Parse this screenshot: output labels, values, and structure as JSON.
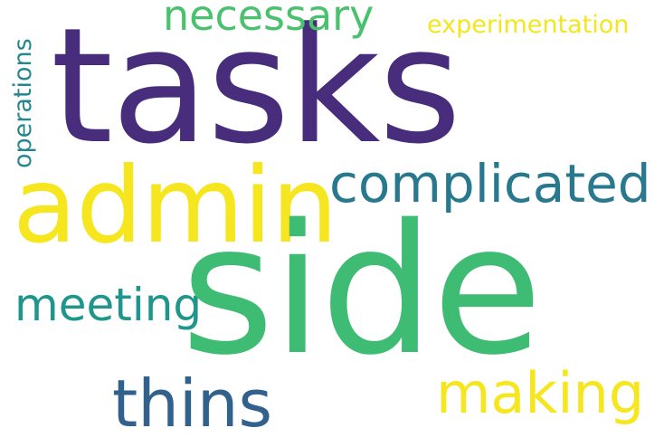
{
  "words": {
    "tasks": {
      "text": "tasks",
      "color": "#472d7b"
    },
    "side": {
      "text": "side",
      "color": "#3fbc73"
    },
    "admin": {
      "text": "admin",
      "color": "#f6e620"
    },
    "complicated": {
      "text": "complicated",
      "color": "#28788e"
    },
    "necessary": {
      "text": "necessary",
      "color": "#49c16d"
    },
    "experimentation": {
      "text": "experimentation",
      "color": "#f4e61e"
    },
    "operations": {
      "text": "operations",
      "color": "#24878e"
    },
    "meeting": {
      "text": "meeting",
      "color": "#1f958b"
    },
    "thins": {
      "text": "thins",
      "color": "#31618d"
    },
    "making": {
      "text": "making",
      "color": "#f6e620"
    }
  },
  "background_color": "#ffffff"
}
